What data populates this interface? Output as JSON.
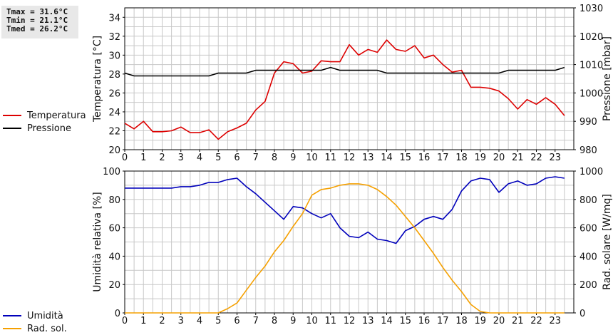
{
  "stats": {
    "tmax": "Tmax = 31.6°C",
    "tmin": "Tmin = 21.1°C",
    "tmed": "Tmed = 26.2°C"
  },
  "colors": {
    "temperature": "#dd0000",
    "pressure": "#000000",
    "humidity": "#0000bb",
    "radiation": "#f5a000",
    "grid": "#c8c8c8"
  },
  "chart_data": [
    {
      "type": "line",
      "legend": "left",
      "grid": true,
      "x_ticks": [
        "0",
        "1",
        "2",
        "3",
        "4",
        "5",
        "6",
        "7",
        "8",
        "9",
        "10",
        "11",
        "12",
        "13",
        "14",
        "15",
        "16",
        "17",
        "18",
        "19",
        "20",
        "21",
        "22",
        "23"
      ],
      "xlim": [
        0,
        24
      ],
      "ylabel": "Temperatura [°C]",
      "ylim": [
        20,
        35
      ],
      "y_ticks": [
        "20",
        "22",
        "24",
        "26",
        "28",
        "30",
        "32",
        "34"
      ],
      "y2label": "Pressione [mbar]",
      "y2lim": [
        980,
        1030
      ],
      "y2_ticks": [
        "980",
        "990",
        "1000",
        "1010",
        "1020",
        "1030"
      ],
      "series": [
        {
          "name": "Temperatura",
          "axis": "left",
          "x": [
            0,
            0.5,
            1,
            1.5,
            2,
            2.5,
            3,
            3.5,
            4,
            4.5,
            5,
            5.5,
            6,
            6.5,
            7,
            7.5,
            8,
            8.5,
            9,
            9.5,
            10,
            10.5,
            11,
            11.5,
            12,
            12.5,
            13,
            13.5,
            14,
            14.5,
            15,
            15.5,
            16,
            16.5,
            17,
            17.5,
            18,
            18.5,
            19,
            19.5,
            20,
            20.5,
            21,
            21.5,
            22,
            22.5,
            23,
            23.5
          ],
          "values": [
            22.8,
            22.2,
            23.0,
            21.9,
            21.9,
            22.0,
            22.4,
            21.8,
            21.8,
            22.1,
            21.1,
            21.9,
            22.3,
            22.8,
            24.2,
            25.1,
            28.1,
            29.3,
            29.1,
            28.1,
            28.3,
            29.4,
            29.3,
            29.3,
            31.1,
            30.0,
            30.6,
            30.3,
            31.6,
            30.6,
            30.4,
            31.0,
            29.7,
            30.0,
            29.0,
            28.2,
            28.4,
            26.6,
            26.6,
            26.5,
            26.2,
            25.4,
            24.3,
            25.3,
            24.8,
            25.5,
            24.8,
            23.6
          ]
        },
        {
          "name": "Pressione",
          "axis": "right",
          "x": [
            0,
            0.5,
            1,
            1.5,
            2,
            2.5,
            3,
            3.5,
            4,
            4.5,
            5,
            5.5,
            6,
            6.5,
            7,
            7.5,
            8,
            8.5,
            9,
            9.5,
            10,
            10.5,
            11,
            11.5,
            12,
            12.5,
            13,
            13.5,
            14,
            14.5,
            15,
            15.5,
            16,
            16.5,
            17,
            17.5,
            18,
            18.5,
            19,
            19.5,
            20,
            20.5,
            21,
            21.5,
            22,
            22.5,
            23,
            23.5
          ],
          "values": [
            1007,
            1006,
            1006,
            1006,
            1006,
            1006,
            1006,
            1006,
            1006,
            1006,
            1007,
            1007,
            1007,
            1007,
            1008,
            1008,
            1008,
            1008,
            1008,
            1008,
            1008,
            1008,
            1009,
            1008,
            1008,
            1008,
            1008,
            1008,
            1007,
            1007,
            1007,
            1007,
            1007,
            1007,
            1007,
            1007,
            1007,
            1007,
            1007,
            1007,
            1007,
            1008,
            1008,
            1008,
            1008,
            1008,
            1008,
            1009
          ]
        }
      ]
    },
    {
      "type": "line",
      "legend": "left",
      "grid": true,
      "x_ticks": [
        "0",
        "1",
        "2",
        "3",
        "4",
        "5",
        "6",
        "7",
        "8",
        "9",
        "10",
        "11",
        "12",
        "13",
        "14",
        "15",
        "16",
        "17",
        "18",
        "19",
        "20",
        "21",
        "22",
        "23"
      ],
      "xlim": [
        0,
        24
      ],
      "ylabel": "Umidità relativa [%]",
      "ylim": [
        0,
        100
      ],
      "y_ticks": [
        "0",
        "20",
        "40",
        "60",
        "80",
        "100"
      ],
      "y2label": "Rad. solare [W/mq]",
      "y2lim": [
        0,
        1000
      ],
      "y2_ticks": [
        "0",
        "200",
        "400",
        "600",
        "800",
        "1000"
      ],
      "series": [
        {
          "name": "Umidità",
          "axis": "left",
          "x": [
            0,
            0.5,
            1,
            1.5,
            2,
            2.5,
            3,
            3.5,
            4,
            4.5,
            5,
            5.5,
            6,
            6.5,
            7,
            7.5,
            8,
            8.5,
            9,
            9.5,
            10,
            10.5,
            11,
            11.5,
            12,
            12.5,
            13,
            13.5,
            14,
            14.5,
            15,
            15.5,
            16,
            16.5,
            17,
            17.5,
            18,
            18.5,
            19,
            19.5,
            20,
            20.5,
            21,
            21.5,
            22,
            22.5,
            23,
            23.5
          ],
          "values": [
            88,
            88,
            88,
            88,
            88,
            88,
            89,
            89,
            90,
            92,
            92,
            94,
            95,
            89,
            84,
            78,
            72,
            66,
            75,
            74,
            70,
            67,
            70,
            60,
            54,
            53,
            57,
            52,
            51,
            49,
            58,
            61,
            66,
            68,
            66,
            73,
            86,
            93,
            95,
            94,
            85,
            91,
            93,
            90,
            91,
            95,
            96,
            95
          ]
        },
        {
          "name": "Rad. sol.",
          "axis": "right",
          "x": [
            0,
            0.5,
            1,
            1.5,
            2,
            2.5,
            3,
            3.5,
            4,
            4.5,
            5,
            5.5,
            6,
            6.5,
            7,
            7.5,
            8,
            8.5,
            9,
            9.5,
            10,
            10.5,
            11,
            11.5,
            12,
            12.5,
            13,
            13.5,
            14,
            14.5,
            15,
            15.5,
            16,
            16.5,
            17,
            17.5,
            18,
            18.5,
            19,
            19.5,
            20,
            20.5,
            21,
            21.5,
            22,
            22.5,
            23,
            23.5
          ],
          "values": [
            0,
            0,
            0,
            0,
            0,
            0,
            0,
            0,
            0,
            0,
            0,
            30,
            70,
            160,
            250,
            330,
            430,
            510,
            610,
            700,
            830,
            870,
            880,
            900,
            910,
            910,
            900,
            870,
            820,
            760,
            680,
            600,
            510,
            420,
            320,
            230,
            150,
            60,
            10,
            0,
            0,
            0,
            0,
            0,
            0,
            0,
            0,
            0
          ]
        }
      ]
    }
  ]
}
